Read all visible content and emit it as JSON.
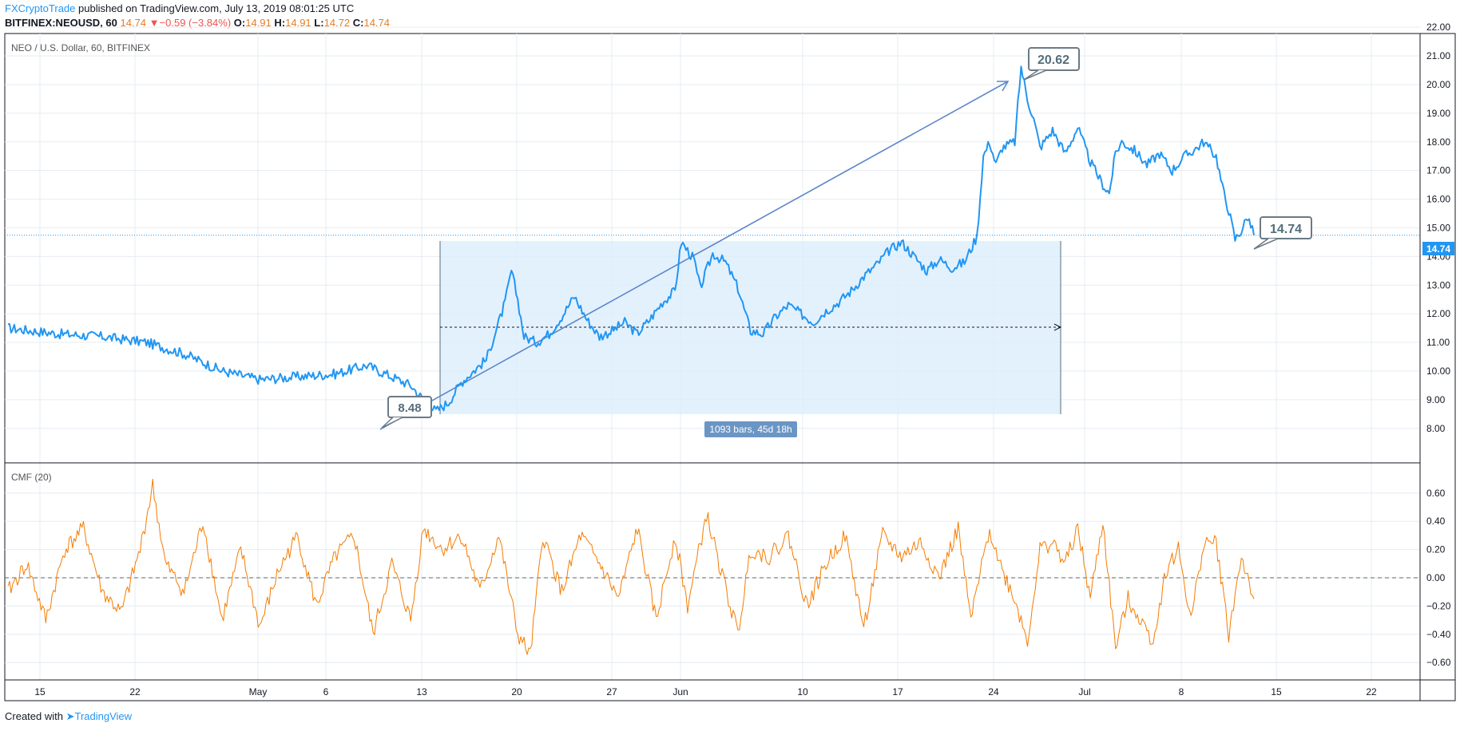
{
  "header": {
    "publisher": "FXCryptoTrade",
    "published_text": " published on TradingView.com, July 13, 2019 08:01:25 UTC",
    "symbol": "BITFINEX:NEOUSD, 60",
    "last": "14.74",
    "change": "−0.59 (−3.84%)",
    "open_label": "O:",
    "open": "14.91",
    "high_label": "H:",
    "high": "14.91",
    "low_label": "L:",
    "low": "14.72",
    "close_label": "C:",
    "close": "14.74"
  },
  "footer": {
    "created_with": "Created with",
    "brand": "TradingView"
  },
  "colors": {
    "price": "#2196f3",
    "cmf": "#f57c00",
    "grid": "#e6ecf2",
    "box": "#dceefc",
    "last_price_bg": "#2196f3"
  },
  "chart_data": [
    {
      "type": "line",
      "title": "NEO / U.S. Dollar, 60, BITFINEX",
      "ylim": [
        7.3,
        22.1
      ],
      "y_ticks": [
        "8.00",
        "9.00",
        "10.00",
        "11.00",
        "12.00",
        "13.00",
        "14.00",
        "15.00",
        "16.00",
        "17.00",
        "18.00",
        "19.00",
        "20.00",
        "21.00",
        "22.00"
      ],
      "x_ticks": [
        "15",
        "22",
        "May",
        "6",
        "13",
        "20",
        "27",
        "Jun",
        "10",
        "17",
        "24",
        "Jul",
        "8",
        "15",
        "22"
      ],
      "series": [
        {
          "points": [
            [
              0,
              11.5
            ],
            [
              8,
              11.3
            ],
            [
              15,
              11.2
            ],
            [
              22,
              11.0
            ],
            [
              28,
              10.6
            ],
            [
              34,
              10.0
            ],
            [
              40,
              9.7
            ],
            [
              46,
              9.8
            ],
            [
              52,
              9.9
            ],
            [
              57,
              10.2
            ],
            [
              60,
              9.9
            ],
            [
              64,
              9.5
            ],
            [
              66,
              9.0
            ],
            [
              68,
              8.6
            ],
            [
              70,
              8.9
            ],
            [
              72,
              9.6
            ],
            [
              74,
              10.0
            ],
            [
              76,
              10.4
            ],
            [
              78,
              11.7
            ],
            [
              79,
              12.4
            ],
            [
              80,
              13.5
            ],
            [
              81,
              12.5
            ],
            [
              82,
              11.2
            ],
            [
              84,
              11.0
            ],
            [
              86,
              11.3
            ],
            [
              88,
              11.9
            ],
            [
              90,
              12.6
            ],
            [
              92,
              11.8
            ],
            [
              94,
              11.2
            ],
            [
              96,
              11.4
            ],
            [
              98,
              11.7
            ],
            [
              100,
              11.3
            ],
            [
              102,
              11.8
            ],
            [
              104,
              12.4
            ],
            [
              106,
              12.8
            ],
            [
              107,
              14.5
            ],
            [
              109,
              13.9
            ],
            [
              110,
              12.9
            ],
            [
              112,
              14.1
            ],
            [
              114,
              13.8
            ],
            [
              116,
              12.9
            ],
            [
              118,
              11.4
            ],
            [
              120,
              11.3
            ],
            [
              122,
              11.9
            ],
            [
              124,
              12.3
            ],
            [
              126,
              12.0
            ],
            [
              128,
              11.7
            ],
            [
              130,
              12.1
            ],
            [
              132,
              12.4
            ],
            [
              134,
              12.8
            ],
            [
              136,
              13.3
            ],
            [
              138,
              13.7
            ],
            [
              140,
              14.2
            ],
            [
              142,
              14.5
            ],
            [
              144,
              14.0
            ],
            [
              146,
              13.5
            ],
            [
              148,
              13.9
            ],
            [
              150,
              13.6
            ],
            [
              152,
              13.8
            ],
            [
              154,
              14.7
            ],
            [
              155,
              17.5
            ],
            [
              156,
              18.0
            ],
            [
              157,
              17.2
            ],
            [
              158,
              17.8
            ],
            [
              160,
              18.0
            ],
            [
              161,
              20.62
            ],
            [
              162,
              19.5
            ],
            [
              163,
              18.8
            ],
            [
              164,
              17.8
            ],
            [
              166,
              18.4
            ],
            [
              168,
              17.6
            ],
            [
              170,
              18.5
            ],
            [
              172,
              17.3
            ],
            [
              174,
              16.5
            ],
            [
              175,
              16.2
            ],
            [
              176,
              17.6
            ],
            [
              177,
              18.0
            ],
            [
              179,
              17.7
            ],
            [
              181,
              17.2
            ],
            [
              183,
              17.6
            ],
            [
              185,
              17.0
            ],
            [
              187,
              17.5
            ],
            [
              189,
              17.8
            ],
            [
              190,
              18.0
            ],
            [
              192,
              17.5
            ],
            [
              193,
              16.4
            ],
            [
              194,
              15.6
            ],
            [
              195,
              14.6
            ],
            [
              196,
              14.9
            ],
            [
              197,
              15.4
            ],
            [
              198,
              14.74
            ]
          ]
        }
      ],
      "last_price": "14.74",
      "annotations": {
        "high_callout": "20.62",
        "low_callout": "8.48",
        "last_callout": "14.74",
        "date_range_label": "1093 bars, 45d 18h"
      }
    },
    {
      "type": "line",
      "title": "CMF (20)",
      "ylim": [
        -0.7,
        0.7
      ],
      "y_ticks": [
        "0.60",
        "0.40",
        "0.20",
        "0.00",
        "−0.20",
        "−0.40",
        "−0.60"
      ],
      "series": [
        {
          "points": [
            [
              0,
              -0.1
            ],
            [
              3,
              0.1
            ],
            [
              6,
              -0.3
            ],
            [
              9,
              0.2
            ],
            [
              12,
              0.35
            ],
            [
              15,
              -0.1
            ],
            [
              18,
              -0.25
            ],
            [
              21,
              0.2
            ],
            [
              23,
              0.65
            ],
            [
              25,
              0.1
            ],
            [
              28,
              -0.1
            ],
            [
              31,
              0.4
            ],
            [
              34,
              -0.3
            ],
            [
              37,
              0.2
            ],
            [
              40,
              -0.35
            ],
            [
              43,
              0.05
            ],
            [
              46,
              0.3
            ],
            [
              49,
              -0.2
            ],
            [
              52,
              0.15
            ],
            [
              55,
              0.3
            ],
            [
              58,
              -0.4
            ],
            [
              61,
              0.1
            ],
            [
              64,
              -0.3
            ],
            [
              66,
              0.35
            ],
            [
              69,
              0.2
            ],
            [
              72,
              0.3
            ],
            [
              75,
              -0.1
            ],
            [
              78,
              0.3
            ],
            [
              81,
              -0.4
            ],
            [
              83,
              -0.55
            ],
            [
              85,
              0.3
            ],
            [
              88,
              -0.1
            ],
            [
              91,
              0.3
            ],
            [
              94,
              0.1
            ],
            [
              97,
              -0.15
            ],
            [
              100,
              0.35
            ],
            [
              103,
              -0.3
            ],
            [
              106,
              0.3
            ],
            [
              108,
              -0.2
            ],
            [
              111,
              0.45
            ],
            [
              113,
              0.1
            ],
            [
              116,
              -0.4
            ],
            [
              118,
              0.2
            ],
            [
              121,
              0.15
            ],
            [
              124,
              0.3
            ],
            [
              127,
              -0.2
            ],
            [
              130,
              0.1
            ],
            [
              133,
              0.3
            ],
            [
              136,
              -0.35
            ],
            [
              139,
              0.3
            ],
            [
              142,
              0.15
            ],
            [
              145,
              0.25
            ],
            [
              148,
              0.0
            ],
            [
              151,
              0.35
            ],
            [
              153,
              -0.3
            ],
            [
              156,
              0.35
            ],
            [
              158,
              0.05
            ],
            [
              160,
              -0.15
            ],
            [
              162,
              -0.45
            ],
            [
              164,
              0.2
            ],
            [
              166,
              0.25
            ],
            [
              168,
              0.1
            ],
            [
              170,
              0.35
            ],
            [
              172,
              -0.15
            ],
            [
              174,
              0.4
            ],
            [
              176,
              -0.5
            ],
            [
              178,
              -0.15
            ],
            [
              180,
              -0.3
            ],
            [
              182,
              -0.45
            ],
            [
              184,
              0.05
            ],
            [
              186,
              0.2
            ],
            [
              188,
              -0.3
            ],
            [
              190,
              0.25
            ],
            [
              192,
              0.25
            ],
            [
              194,
              -0.4
            ],
            [
              196,
              0.15
            ],
            [
              198,
              -0.15
            ]
          ]
        }
      ]
    }
  ]
}
